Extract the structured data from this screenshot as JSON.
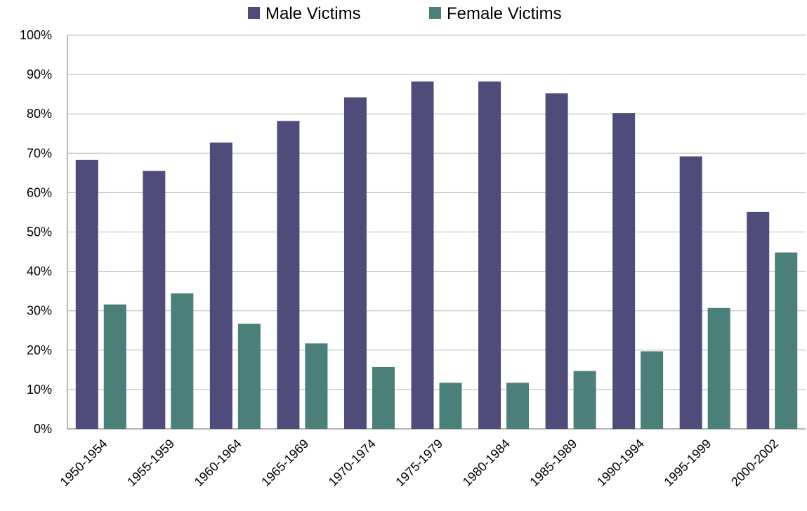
{
  "chart_data": {
    "type": "bar",
    "categories": [
      "1950-1954",
      "1955-1959",
      "1960-1964",
      "1965-1969",
      "1970-1974",
      "1975-1979",
      "1980-1984",
      "1985-1989",
      "1990-1994",
      "1995-1999",
      "2000-2002"
    ],
    "series": [
      {
        "name": "Male Victims",
        "color": "#4f4c7c",
        "values": [
          68.3,
          65.5,
          72.7,
          78.2,
          84.2,
          88.2,
          88.2,
          85.2,
          80.2,
          69.2,
          55.1
        ]
      },
      {
        "name": "Female Victims",
        "color": "#4a7f7a",
        "values": [
          31.6,
          34.4,
          26.7,
          21.7,
          15.7,
          11.7,
          11.7,
          14.7,
          19.7,
          30.7,
          44.8
        ]
      }
    ],
    "ylim": [
      0,
      100
    ],
    "yticks": [
      "0%",
      "10%",
      "20%",
      "30%",
      "40%",
      "50%",
      "60%",
      "70%",
      "80%",
      "90%",
      "100%"
    ],
    "grid": true,
    "legend_position": "top-center"
  }
}
